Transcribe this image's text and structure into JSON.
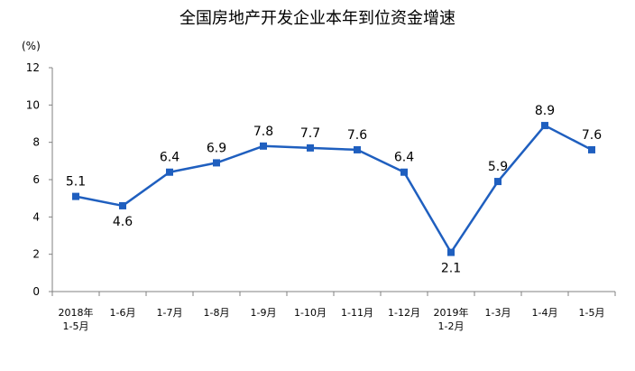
{
  "chart_data": {
    "type": "line",
    "title": "全国房地产开发企业本年到位资金增速",
    "ylabel": "(%)",
    "ylim": [
      0,
      12
    ],
    "yticks": [
      0,
      2,
      4,
      6,
      8,
      10,
      12
    ],
    "categories": [
      [
        "2018年",
        "1-5月"
      ],
      [
        "1-6月"
      ],
      [
        "1-7月"
      ],
      [
        "1-8月"
      ],
      [
        "1-9月"
      ],
      [
        "1-10月"
      ],
      [
        "1-11月"
      ],
      [
        "1-12月"
      ],
      [
        "2019年",
        "1-2月"
      ],
      [
        "1-3月"
      ],
      [
        "1-4月"
      ],
      [
        "1-5月"
      ]
    ],
    "values": [
      5.1,
      4.6,
      6.4,
      6.9,
      7.8,
      7.7,
      7.6,
      6.4,
      2.1,
      5.9,
      8.9,
      7.6
    ],
    "label_position": [
      "above",
      "below",
      "above",
      "above",
      "above",
      "above",
      "above",
      "above",
      "below",
      "above",
      "above",
      "above"
    ],
    "colors": {
      "line": "#1f5fbf",
      "marker": "#1f5fbf",
      "axis": "#808080"
    },
    "grid": false
  }
}
